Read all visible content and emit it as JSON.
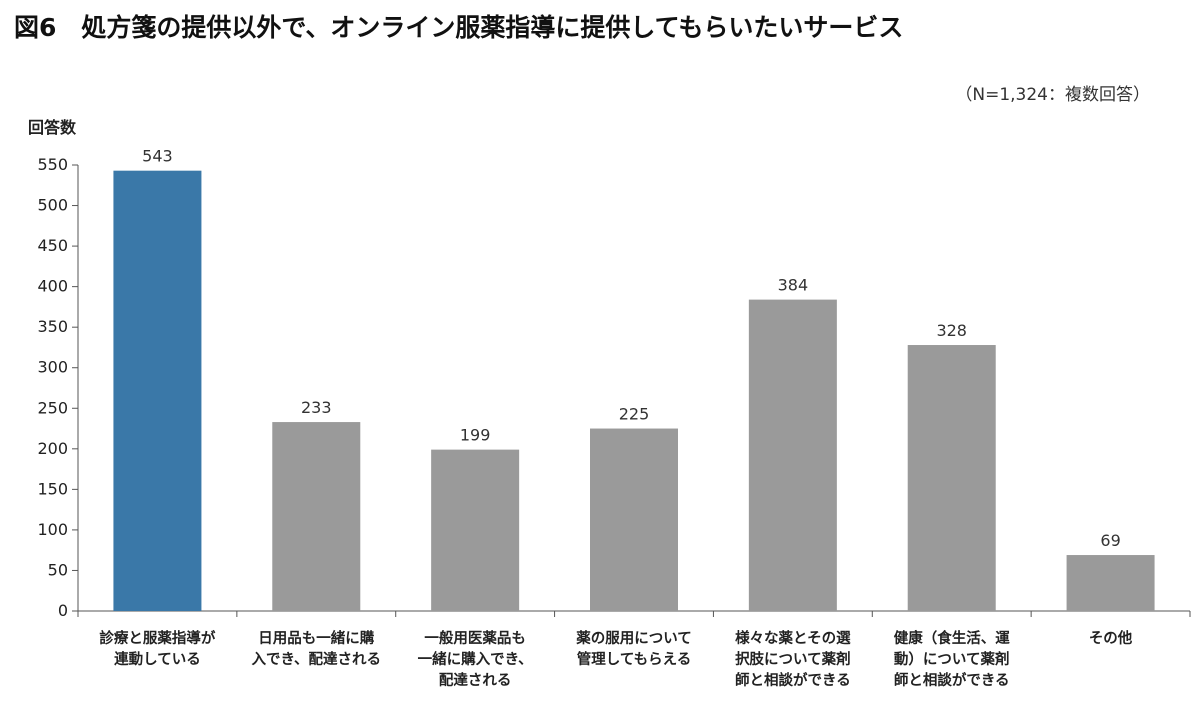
{
  "figure": {
    "title": "図6　処方箋の提供以外で、オンライン服薬指導に提供してもらいたいサービス",
    "note": "（N=1,324：複数回答）"
  },
  "chart_data": {
    "type": "bar",
    "ylabel": "回答数",
    "xlabel": "",
    "ylim": [
      0,
      550
    ],
    "ytick_step": 50,
    "grid": false,
    "highlight_color": "#3a78a8",
    "bar_color": "#9a9a9a",
    "highlight_index": 0,
    "categories": [
      [
        "診療と服薬指導が",
        "連動している"
      ],
      [
        "日用品も一緒に購",
        "入でき、配達される"
      ],
      [
        "一般用医薬品も",
        "一緒に購入でき、",
        "配達される"
      ],
      [
        "薬の服用について",
        "管理してもらえる"
      ],
      [
        "様々な薬とその選",
        "択肢について薬剤",
        "師と相談ができる"
      ],
      [
        "健康（食生活、運",
        "動）について薬剤",
        "師と相談ができる"
      ],
      [
        "その他"
      ]
    ],
    "values": [
      543,
      233,
      199,
      225,
      384,
      328,
      69
    ]
  }
}
